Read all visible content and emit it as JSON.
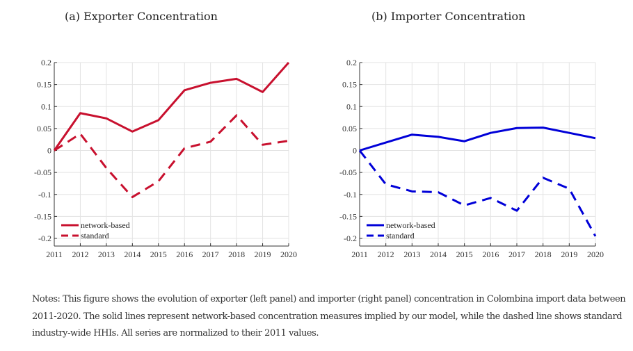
{
  "chart_data": [
    {
      "type": "line",
      "title": "(a) Exporter Concentration",
      "xlabel": "",
      "ylabel": "",
      "x": [
        2011,
        2012,
        2013,
        2014,
        2015,
        2016,
        2017,
        2018,
        2019,
        2020
      ],
      "xlim": [
        2011,
        2020
      ],
      "ylim": [
        -0.2,
        0.2
      ],
      "yticks": [
        0.2,
        0.15,
        0.1,
        0.05,
        0,
        -0.05,
        -0.1,
        -0.15,
        -0.2
      ],
      "ytick_labels": [
        "0.2",
        "0.15",
        "0.1",
        "0.05",
        "0",
        "-0.05",
        "-0.1",
        "-0.15",
        "-0.2"
      ],
      "xtick_labels": [
        "2011",
        "2012",
        "2013",
        "2014",
        "2015",
        "2016",
        "2017",
        "2018",
        "2019",
        "2020"
      ],
      "grid": true,
      "legend_position": "bottom-left",
      "series": [
        {
          "name": "network-based",
          "style": "solid",
          "color": "#c8102e",
          "values": [
            0,
            0.085,
            0.073,
            0.043,
            0.069,
            0.137,
            0.154,
            0.163,
            0.133,
            0.2
          ]
        },
        {
          "name": "standard",
          "style": "dashed",
          "color": "#c8102e",
          "values": [
            0,
            0.038,
            -0.04,
            -0.106,
            -0.07,
            0.005,
            0.02,
            0.08,
            0.013,
            0.022
          ]
        }
      ]
    },
    {
      "type": "line",
      "title": "(b) Importer Concentration",
      "xlabel": "",
      "ylabel": "",
      "x": [
        2011,
        2012,
        2013,
        2014,
        2015,
        2016,
        2017,
        2018,
        2019,
        2020
      ],
      "xlim": [
        2011,
        2020
      ],
      "ylim": [
        -0.2,
        0.2
      ],
      "yticks": [
        0.2,
        0.15,
        0.1,
        0.05,
        0,
        -0.05,
        -0.1,
        -0.15,
        -0.2
      ],
      "ytick_labels": [
        "0.2",
        "0.15",
        "0.1",
        "0.05",
        "0",
        "-0.05",
        "-0.1",
        "-0.15",
        "-0.2"
      ],
      "xtick_labels": [
        "2011",
        "2012",
        "2013",
        "2014",
        "2015",
        "2016",
        "2017",
        "2018",
        "2019",
        "2020"
      ],
      "grid": true,
      "legend_position": "bottom-left",
      "series": [
        {
          "name": "network-based",
          "style": "solid",
          "color": "#0000d8",
          "values": [
            0,
            0.018,
            0.036,
            0.031,
            0.021,
            0.04,
            0.051,
            0.052,
            0.04,
            0.028
          ]
        },
        {
          "name": "standard",
          "style": "dashed",
          "color": "#0000d8",
          "values": [
            0,
            -0.077,
            -0.093,
            -0.095,
            -0.125,
            -0.108,
            -0.137,
            -0.062,
            -0.087,
            -0.195
          ]
        }
      ]
    }
  ],
  "titles": {
    "a": "(a) Exporter Concentration",
    "b": "(b) Importer Concentration"
  },
  "notes": "Notes: This figure shows the evolution of exporter (left panel) and importer (right panel) concentration in Colombina import data between 2011-2020. The solid lines represent network-based concentration measures implied by our model, while the dashed line shows standard industry-wide HHIs. All series are normalized to their 2011 values."
}
